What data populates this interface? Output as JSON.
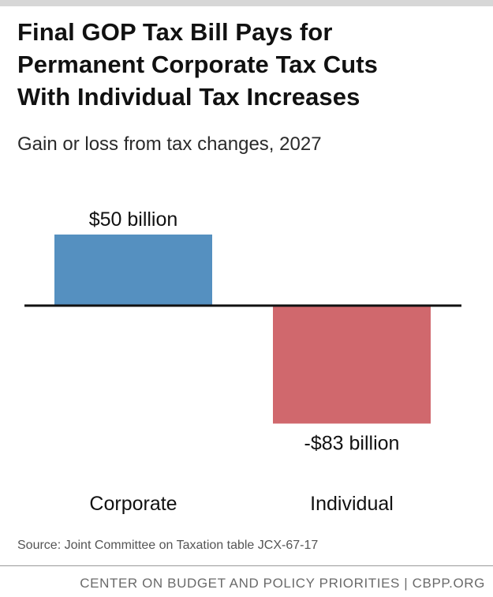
{
  "title": {
    "line1": "Final GOP Tax Bill Pays for",
    "line2": "Permanent Corporate Tax Cuts",
    "line3": "With Individual Tax Increases"
  },
  "subtitle": "Gain or loss from tax changes, 2027",
  "source": "Source: Joint Committee on Taxation table JCX-67-17",
  "footer": "CENTER ON BUDGET AND POLICY PRIORITIES | CBPP.ORG",
  "chart_data": {
    "type": "bar",
    "title": "Final GOP Tax Bill Pays for Permanent Corporate Tax Cuts With Individual Tax Increases",
    "subtitle": "Gain or loss from tax changes, 2027",
    "categories": [
      "Corporate",
      "Individual"
    ],
    "values": [
      50,
      -83
    ],
    "data_labels": [
      "$50 billion",
      "-$83 billion"
    ],
    "colors": [
      "#5590c0",
      "#d0686d"
    ],
    "unit": "billion dollars",
    "ylim": [
      -90,
      60
    ],
    "grid": false,
    "legend": "none"
  },
  "colors": {
    "zero_line": "#111111",
    "text": "#111111",
    "source": "#555555",
    "footer": "#6a6a6a"
  }
}
